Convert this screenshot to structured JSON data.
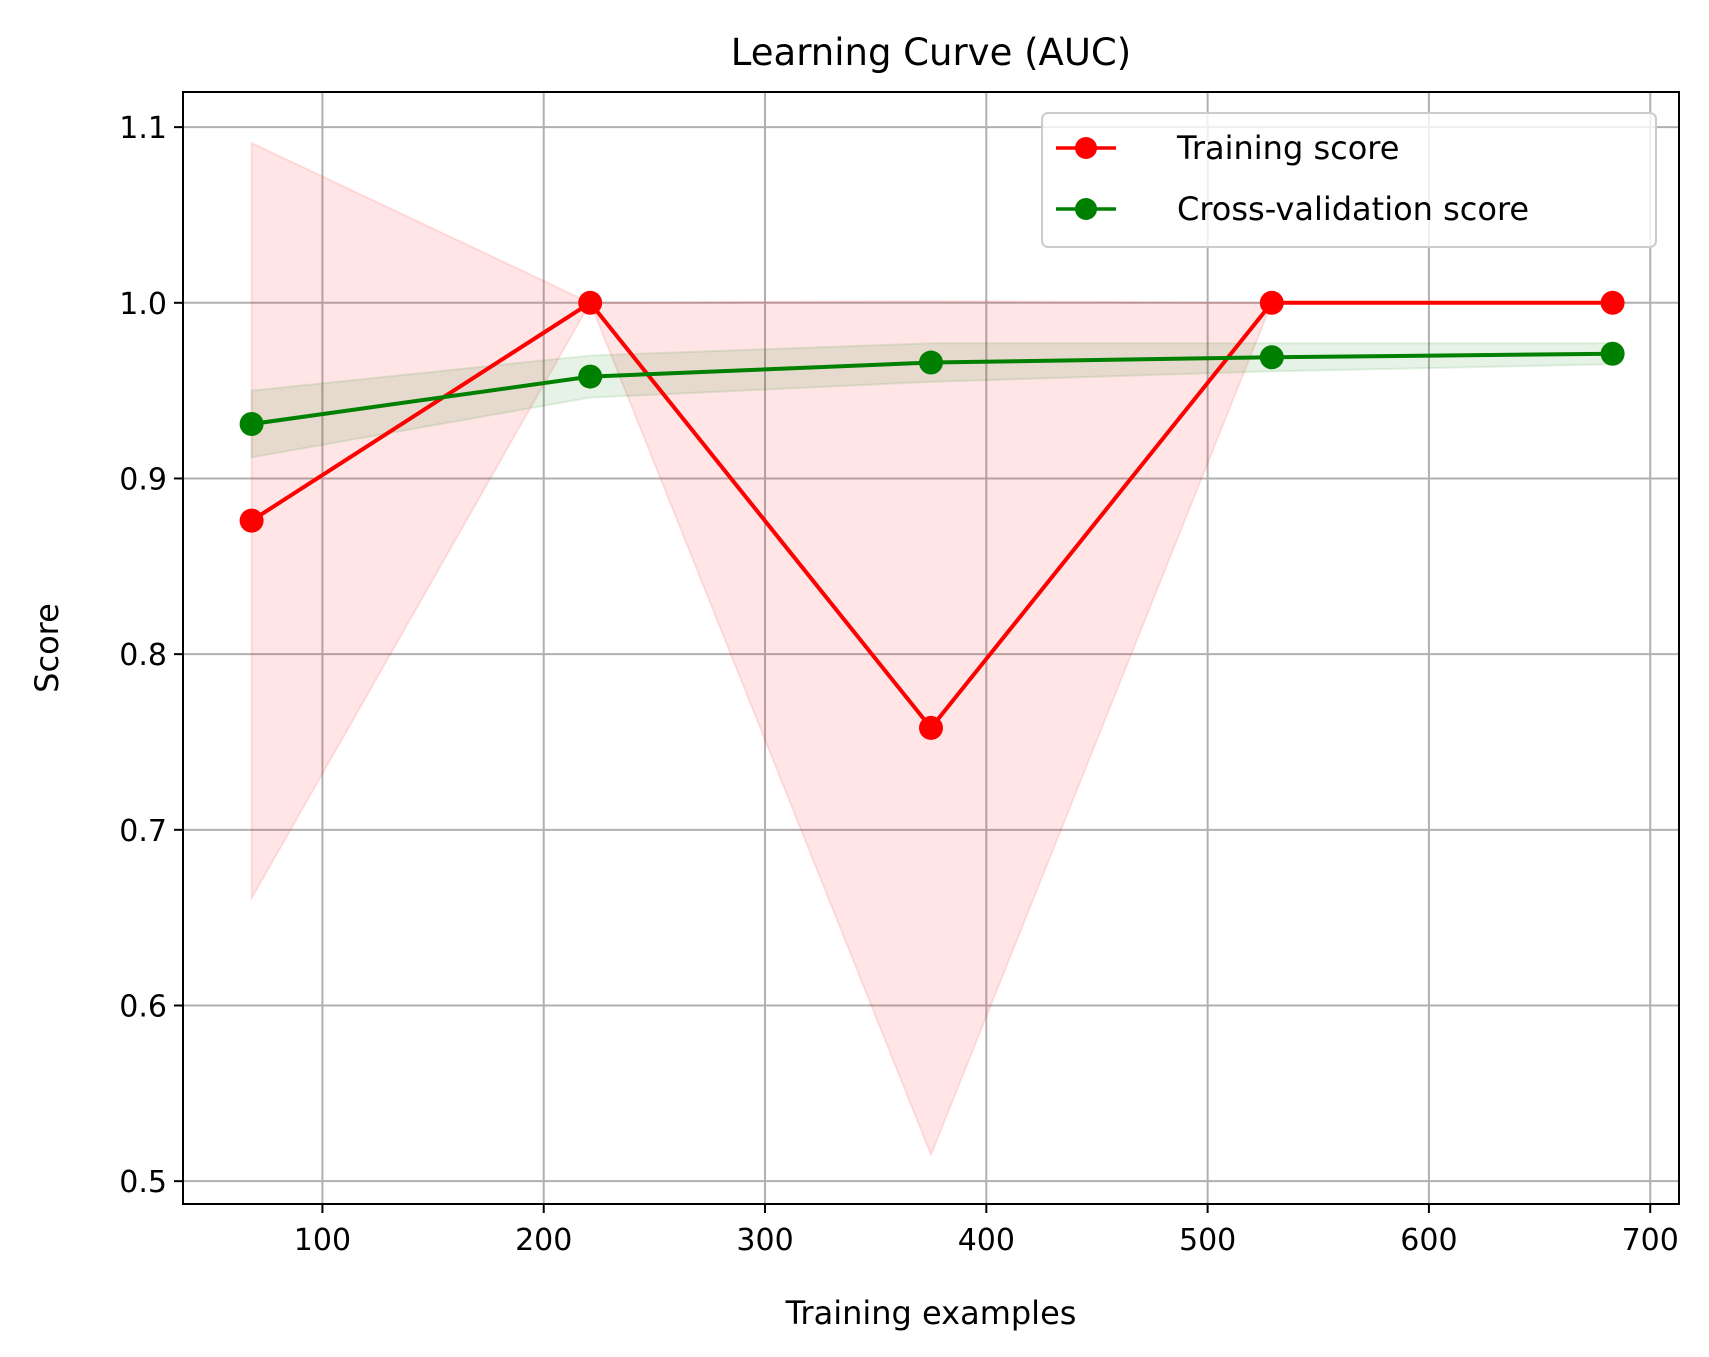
{
  "chart_data": {
    "type": "line",
    "title": "Learning Curve (AUC)",
    "xlabel": "Training examples",
    "ylabel": "Score",
    "xlim": [
      37,
      713
    ],
    "ylim": [
      0.487,
      1.12
    ],
    "xticks": [
      100,
      200,
      300,
      400,
      500,
      600,
      700
    ],
    "yticks": [
      0.5,
      0.6,
      0.7,
      0.8,
      0.9,
      1.0,
      1.1
    ],
    "xtick_labels": [
      "100",
      "200",
      "300",
      "400",
      "500",
      "600",
      "700"
    ],
    "ytick_labels": [
      "0.5",
      "0.6",
      "0.7",
      "0.8",
      "0.9",
      "1.0",
      "1.1"
    ],
    "grid": true,
    "legend_position": "top-right",
    "x": [
      68,
      221,
      375,
      529,
      683
    ],
    "series": [
      {
        "name": "Training score",
        "color": "#ff0000",
        "marker": "circle",
        "values": [
          0.876,
          1.0,
          0.758,
          1.0,
          1.0
        ],
        "band_lower": [
          0.661,
          1.0,
          0.515,
          1.0,
          1.0
        ],
        "band_upper": [
          1.091,
          1.0,
          1.001,
          1.0,
          1.0
        ],
        "band_color": "#ff0000",
        "band_opacity": 0.1
      },
      {
        "name": "Cross-validation score",
        "color": "#008000",
        "marker": "circle",
        "values": [
          0.931,
          0.958,
          0.966,
          0.969,
          0.971
        ],
        "band_lower": [
          0.912,
          0.946,
          0.955,
          0.961,
          0.965
        ],
        "band_upper": [
          0.95,
          0.97,
          0.977,
          0.977,
          0.977
        ],
        "band_color": "#008000",
        "band_opacity": 0.1
      }
    ]
  }
}
